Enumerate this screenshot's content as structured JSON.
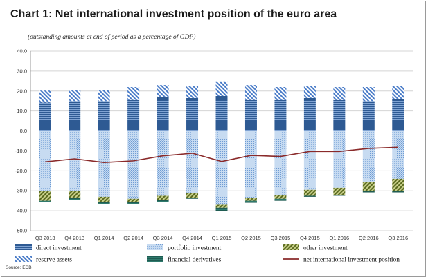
{
  "title": "Chart 1: Net international investment position of the euro area",
  "subtitle": "(outstanding amounts at end of period as a percentage of GDP)",
  "source": "Source: ECB",
  "chart_data": {
    "type": "bar",
    "stacked": true,
    "categories": [
      "Q3 2013",
      "Q4 2013",
      "Q1 2014",
      "Q2 2014",
      "Q3 2014",
      "Q4 2014",
      "Q1 2015",
      "Q2 2015",
      "Q3 2015",
      "Q4 2015",
      "Q1 2016",
      "Q2 2016",
      "Q3 2016"
    ],
    "ylim": [
      -50,
      40
    ],
    "yticks": [
      "40.0",
      "30.0",
      "20.0",
      "10.0",
      "0.0",
      "-10.0",
      "-20.0",
      "-30.0",
      "-40.0",
      "-50.0"
    ],
    "grid": true,
    "legend_position": "bottom",
    "series": [
      {
        "name": "direct investment",
        "kind": "bar",
        "color": "#2e5a93",
        "values": [
          14.2,
          15.0,
          15.0,
          15.5,
          17.0,
          16.5,
          17.5,
          15.5,
          15.5,
          16.5,
          15.5,
          15.0,
          16.0
        ]
      },
      {
        "name": "portfolio investment",
        "kind": "bar",
        "color": "#9ec0e6",
        "values": [
          -30.0,
          -30.0,
          -33.0,
          -34.0,
          -32.5,
          -31.0,
          -37.0,
          -33.5,
          -32.0,
          -29.5,
          -28.5,
          -25.5,
          -24.0
        ]
      },
      {
        "name": "other investment",
        "kind": "bar",
        "color": "#6b7a2c",
        "values": [
          -5.0,
          -3.5,
          -2.5,
          -1.5,
          -2.0,
          -2.5,
          -1.5,
          -1.5,
          -2.0,
          -3.0,
          -3.5,
          -4.5,
          -6.0
        ]
      },
      {
        "name": "reserve assets",
        "kind": "bar",
        "color": "#5a8ad0",
        "values": [
          6.0,
          5.5,
          5.5,
          6.5,
          6.0,
          6.0,
          7.0,
          7.5,
          6.5,
          6.0,
          6.5,
          7.0,
          6.5
        ]
      },
      {
        "name": "financial derivatives",
        "kind": "bar",
        "color": "#1f5c52",
        "values": [
          -0.8,
          -1.0,
          -1.0,
          -1.0,
          -1.0,
          -0.5,
          -1.5,
          -1.0,
          -1.0,
          -0.5,
          -0.5,
          -0.8,
          -0.8
        ]
      },
      {
        "name": "net international investment position",
        "kind": "line",
        "color": "#8a2a2a",
        "values": [
          -15.5,
          -14.0,
          -15.8,
          -15.0,
          -12.5,
          -11.2,
          -15.3,
          -12.3,
          -12.8,
          -10.3,
          -10.3,
          -8.8,
          -8.2
        ]
      }
    ]
  }
}
